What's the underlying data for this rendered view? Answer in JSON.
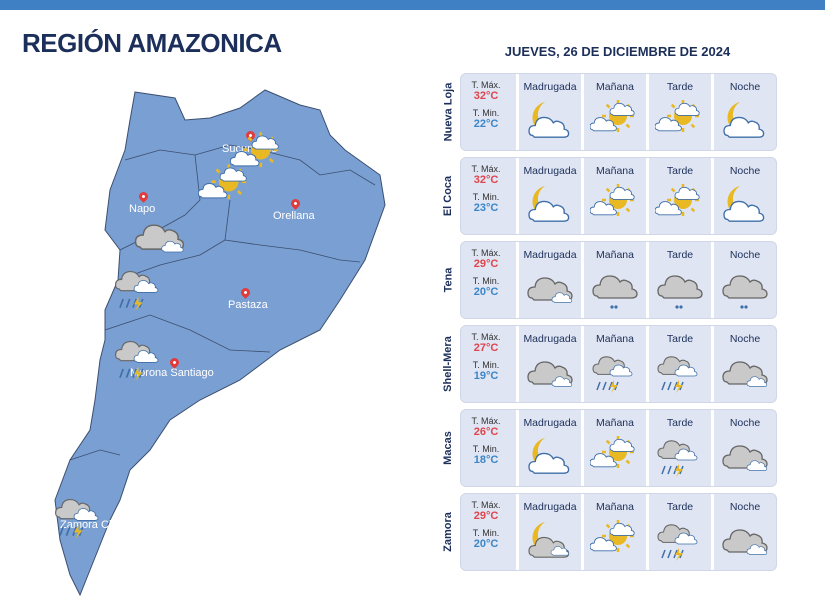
{
  "header": {
    "title": "REGIÓN AMAZONICA",
    "date": "JUEVES, 26 DE DICIEMBRE DE 2024"
  },
  "map": {
    "provinces": [
      "Sucumbíos",
      "Napo",
      "Orellana",
      "Pastaza",
      "Morona Santiago",
      "Zamora Chinchipe"
    ],
    "fill": "#7a9fd2"
  },
  "labels": {
    "tmax": "T. Máx.",
    "tmin": "T. Min.",
    "periods": [
      "Madrugada",
      "Mañana",
      "Tarde",
      "Noche"
    ]
  },
  "cities": [
    {
      "name": "Nueva Loja",
      "tmax": "32°C",
      "tmin": "22°C",
      "icons": [
        "moon-cloud-icon",
        "sun-cloud-icon",
        "sun-cloud-icon",
        "moon-cloud-icon"
      ]
    },
    {
      "name": "El Coca",
      "tmax": "32°C",
      "tmin": "23°C",
      "icons": [
        "moon-cloud-icon",
        "sun-cloud-icon",
        "sun-cloud-icon",
        "moon-cloud-icon"
      ]
    },
    {
      "name": "Tena",
      "tmax": "29°C",
      "tmin": "20°C",
      "icons": [
        "overcast-icon",
        "rain-icon",
        "rain-icon",
        "rain-icon"
      ]
    },
    {
      "name": "Shell-Mera",
      "tmax": "27°C",
      "tmin": "19°C",
      "icons": [
        "overcast-icon",
        "storm-icon",
        "storm-icon",
        "overcast-icon"
      ]
    },
    {
      "name": "Macas",
      "tmax": "26°C",
      "tmin": "18°C",
      "icons": [
        "moon-cloud-icon",
        "sun-cloud-icon",
        "storm-icon",
        "overcast-icon"
      ]
    },
    {
      "name": "Zamora",
      "tmax": "29°C",
      "tmin": "20°C",
      "icons": [
        "moon-overcast-icon",
        "sun-cloud-icon",
        "storm-icon",
        "overcast-icon"
      ]
    }
  ]
}
